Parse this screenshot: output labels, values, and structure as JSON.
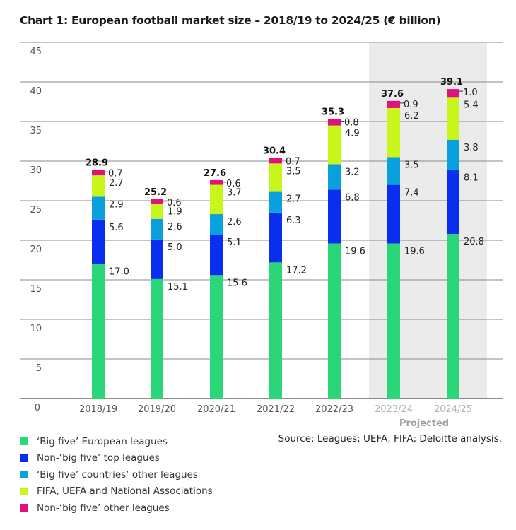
{
  "chart_data": {
    "type": "bar",
    "stacked": true,
    "title": "Chart 1: European football market size – 2018/19 to 2024/25 (€ billion)",
    "xlabel": "",
    "ylabel": "",
    "ylim": [
      0,
      45
    ],
    "yticks": [
      0,
      5,
      10,
      15,
      20,
      25,
      30,
      35,
      40,
      45
    ],
    "grid": true,
    "categories": [
      "2018/19",
      "2019/20",
      "2020/21",
      "2021/22",
      "2022/23",
      "2023/24",
      "2024/25"
    ],
    "projected_categories": [
      "2023/24",
      "2024/25"
    ],
    "projected_label": "Projected",
    "totals": [
      28.9,
      25.2,
      27.6,
      30.4,
      35.3,
      37.6,
      39.1
    ],
    "series": [
      {
        "name": "‘Big five’ European leagues",
        "color": "#2bd678",
        "values": [
          17.0,
          15.1,
          15.6,
          17.2,
          19.6,
          19.6,
          20.8
        ]
      },
      {
        "name": "Non-‘big five’ top leagues",
        "color": "#0a2ef0",
        "values": [
          5.6,
          5.0,
          5.1,
          6.3,
          6.8,
          7.4,
          8.1
        ]
      },
      {
        "name": "‘Big five’ countries’ other leagues",
        "color": "#0a9fdd",
        "values": [
          2.9,
          2.6,
          2.6,
          2.7,
          3.2,
          3.5,
          3.8
        ]
      },
      {
        "name": "FIFA, UEFA and National Associations",
        "color": "#c8f51a",
        "values": [
          2.7,
          1.9,
          3.7,
          3.5,
          4.9,
          6.2,
          5.4
        ]
      },
      {
        "name": "Non-‘big five’ other leagues",
        "color": "#e0117a",
        "values": [
          0.7,
          0.6,
          0.6,
          0.7,
          0.8,
          0.9,
          1.0
        ]
      }
    ],
    "legend_position": "bottom-left",
    "source": "Source: Leagues; UEFA; FIFA; Deloitte analysis."
  }
}
